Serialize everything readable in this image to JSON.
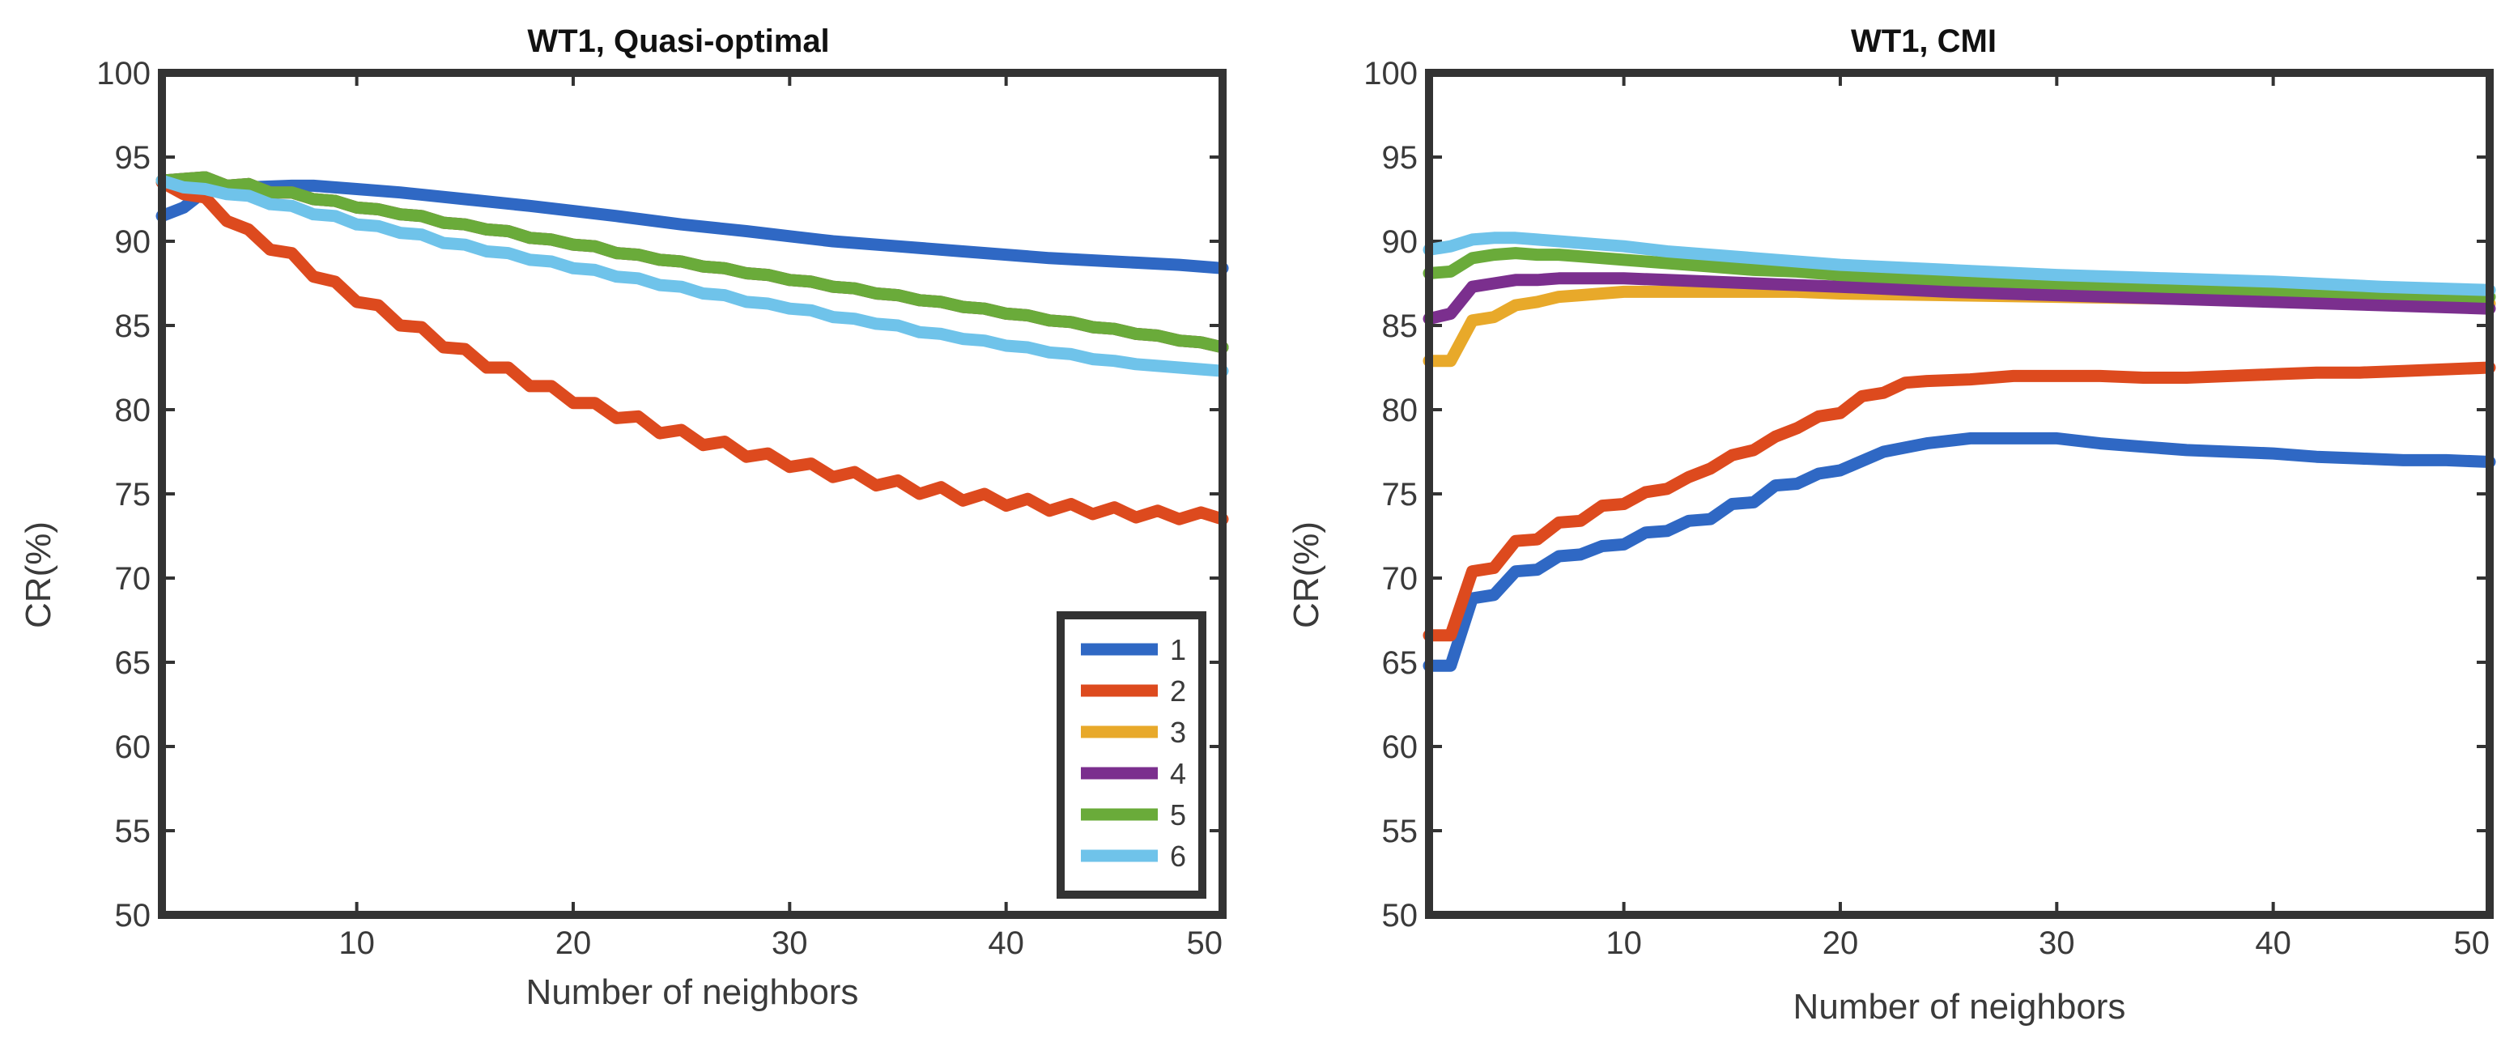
{
  "chart_data": [
    {
      "type": "line",
      "title": "WT1, Quasi-optimal",
      "xlabel": "Number of neighbors",
      "ylabel": "CR(%)",
      "xlim": [
        1,
        50
      ],
      "ylim": [
        50,
        100
      ],
      "xticks": [
        10,
        20,
        30,
        40,
        50
      ],
      "yticks": [
        50,
        55,
        60,
        65,
        70,
        75,
        80,
        85,
        90,
        95,
        100
      ],
      "legend": {
        "position": "bottom-right",
        "entries": [
          "1",
          "2",
          "3",
          "4",
          "5",
          "6"
        ]
      },
      "series": [
        {
          "name": "1",
          "color": "#2f68c4",
          "x": [
            1,
            2,
            3,
            5,
            7,
            8,
            10,
            12,
            15,
            18,
            20,
            22,
            25,
            28,
            30,
            32,
            35,
            38,
            40,
            42,
            45,
            48,
            50
          ],
          "y": [
            91.5,
            92,
            93,
            93.2,
            93.3,
            93.3,
            93.1,
            92.9,
            92.5,
            92.1,
            91.8,
            91.5,
            91,
            90.6,
            90.3,
            90,
            89.7,
            89.4,
            89.2,
            89,
            88.8,
            88.6,
            88.4
          ]
        },
        {
          "name": "2",
          "color": "#dd4a1e",
          "x": [
            1,
            2,
            3,
            4,
            5,
            6,
            7,
            8,
            9,
            10,
            11,
            12,
            13,
            14,
            15,
            16,
            17,
            18,
            19,
            20,
            21,
            22,
            23,
            24,
            25,
            26,
            27,
            28,
            29,
            30,
            31,
            32,
            33,
            34,
            35,
            36,
            37,
            38,
            39,
            40,
            41,
            42,
            43,
            44,
            45,
            46,
            47,
            48,
            49,
            50
          ],
          "y": [
            93.5,
            92.8,
            92.6,
            91.2,
            90.7,
            89.5,
            89.3,
            87.9,
            87.6,
            86.4,
            86.2,
            85.0,
            84.9,
            83.7,
            83.6,
            82.5,
            82.5,
            81.4,
            81.4,
            80.4,
            80.4,
            79.5,
            79.6,
            78.6,
            78.8,
            77.9,
            78.1,
            77.2,
            77.4,
            76.6,
            76.8,
            76.0,
            76.3,
            75.5,
            75.8,
            75.0,
            75.4,
            74.6,
            75.0,
            74.3,
            74.7,
            74.0,
            74.4,
            73.8,
            74.2,
            73.6,
            74.0,
            73.5,
            73.9,
            73.5
          ]
        },
        {
          "name": "3",
          "color": "#e8a92a",
          "x": [
            1,
            2,
            3,
            4,
            5,
            6,
            7,
            8,
            9,
            10,
            11,
            12,
            13,
            14,
            15,
            16,
            17,
            18,
            19,
            20,
            21,
            22,
            23,
            24,
            25,
            26,
            27,
            28,
            29,
            30,
            31,
            32,
            33,
            34,
            35,
            36,
            37,
            38,
            39,
            40,
            41,
            42,
            43,
            44,
            45,
            46,
            47,
            48,
            49,
            50
          ],
          "y": [
            93.6,
            93.7,
            93.8,
            93.3,
            93.4,
            92.9,
            92.9,
            92.5,
            92.4,
            92.0,
            91.9,
            91.6,
            91.5,
            91.1,
            91.0,
            90.7,
            90.6,
            90.2,
            90.1,
            89.8,
            89.7,
            89.3,
            89.2,
            88.9,
            88.8,
            88.5,
            88.4,
            88.1,
            88.0,
            87.7,
            87.6,
            87.3,
            87.2,
            86.9,
            86.8,
            86.5,
            86.4,
            86.1,
            86.0,
            85.7,
            85.6,
            85.3,
            85.2,
            84.9,
            84.8,
            84.5,
            84.4,
            84.1,
            84.0,
            83.7
          ]
        },
        {
          "name": "4",
          "color": "#7b2f8e",
          "x": [
            1,
            2,
            3,
            4,
            5,
            6,
            7,
            8,
            9,
            10,
            11,
            12,
            13,
            14,
            15,
            16,
            17,
            18,
            19,
            20,
            21,
            22,
            23,
            24,
            25,
            26,
            27,
            28,
            29,
            30,
            31,
            32,
            33,
            34,
            35,
            36,
            37,
            38,
            39,
            40,
            41,
            42,
            43,
            44,
            45,
            46,
            47,
            48,
            49,
            50
          ],
          "y": [
            93.6,
            93.7,
            93.8,
            93.3,
            93.4,
            92.9,
            92.9,
            92.5,
            92.4,
            92.0,
            91.9,
            91.6,
            91.5,
            91.1,
            91.0,
            90.7,
            90.6,
            90.2,
            90.1,
            89.8,
            89.7,
            89.3,
            89.2,
            88.9,
            88.8,
            88.5,
            88.4,
            88.1,
            88.0,
            87.7,
            87.6,
            87.3,
            87.2,
            86.9,
            86.8,
            86.5,
            86.4,
            86.1,
            86.0,
            85.7,
            85.6,
            85.3,
            85.2,
            84.9,
            84.8,
            84.5,
            84.4,
            84.1,
            84.0,
            83.7
          ]
        },
        {
          "name": "5",
          "color": "#6aab3a",
          "x": [
            1,
            2,
            3,
            4,
            5,
            6,
            7,
            8,
            9,
            10,
            11,
            12,
            13,
            14,
            15,
            16,
            17,
            18,
            19,
            20,
            21,
            22,
            23,
            24,
            25,
            26,
            27,
            28,
            29,
            30,
            31,
            32,
            33,
            34,
            35,
            36,
            37,
            38,
            39,
            40,
            41,
            42,
            43,
            44,
            45,
            46,
            47,
            48,
            49,
            50
          ],
          "y": [
            93.6,
            93.7,
            93.8,
            93.3,
            93.4,
            92.9,
            92.9,
            92.5,
            92.4,
            92.0,
            91.9,
            91.6,
            91.5,
            91.1,
            91.0,
            90.7,
            90.6,
            90.2,
            90.1,
            89.8,
            89.7,
            89.3,
            89.2,
            88.9,
            88.8,
            88.5,
            88.4,
            88.1,
            88.0,
            87.7,
            87.6,
            87.3,
            87.2,
            86.9,
            86.8,
            86.5,
            86.4,
            86.1,
            86.0,
            85.7,
            85.6,
            85.3,
            85.2,
            84.9,
            84.8,
            84.5,
            84.4,
            84.1,
            84.0,
            83.7
          ]
        },
        {
          "name": "6",
          "color": "#6fc3ea",
          "x": [
            1,
            2,
            3,
            4,
            5,
            6,
            7,
            8,
            9,
            10,
            11,
            12,
            13,
            14,
            15,
            16,
            17,
            18,
            19,
            20,
            21,
            22,
            23,
            24,
            25,
            26,
            27,
            28,
            29,
            30,
            31,
            32,
            33,
            34,
            35,
            36,
            37,
            38,
            39,
            40,
            41,
            42,
            43,
            44,
            45,
            46,
            47,
            48,
            49,
            50
          ],
          "y": [
            93.6,
            93.2,
            93.1,
            92.8,
            92.7,
            92.2,
            92.1,
            91.6,
            91.5,
            91.0,
            90.9,
            90.5,
            90.4,
            89.9,
            89.8,
            89.4,
            89.3,
            88.9,
            88.8,
            88.4,
            88.3,
            87.9,
            87.8,
            87.4,
            87.3,
            86.9,
            86.8,
            86.4,
            86.3,
            86.0,
            85.9,
            85.5,
            85.4,
            85.1,
            85.0,
            84.6,
            84.5,
            84.2,
            84.1,
            83.8,
            83.7,
            83.4,
            83.3,
            83.0,
            82.9,
            82.7,
            82.6,
            82.5,
            82.4,
            82.3
          ]
        }
      ]
    },
    {
      "type": "line",
      "title": "WT1, CMI",
      "xlabel": "Number  of neighbors",
      "ylabel": "CR(%)",
      "xlim": [
        1,
        50
      ],
      "ylim": [
        50,
        100
      ],
      "xticks": [
        10,
        20,
        30,
        40,
        50
      ],
      "yticks": [
        50,
        55,
        60,
        65,
        70,
        75,
        80,
        85,
        90,
        95,
        100
      ],
      "series": [
        {
          "name": "1",
          "color": "#2f68c4",
          "x": [
            1,
            2,
            3,
            4,
            5,
            6,
            7,
            8,
            9,
            10,
            11,
            12,
            13,
            14,
            15,
            16,
            17,
            18,
            19,
            20,
            22,
            24,
            26,
            28,
            30,
            32,
            34,
            36,
            38,
            40,
            42,
            44,
            46,
            48,
            50
          ],
          "y": [
            64.8,
            64.8,
            68.8,
            69.0,
            70.4,
            70.5,
            71.3,
            71.4,
            71.9,
            72.0,
            72.7,
            72.8,
            73.4,
            73.5,
            74.4,
            74.5,
            75.5,
            75.6,
            76.2,
            76.4,
            77.5,
            78.0,
            78.3,
            78.3,
            78.3,
            78.0,
            77.8,
            77.6,
            77.5,
            77.4,
            77.2,
            77.1,
            77.0,
            77.0,
            76.9
          ]
        },
        {
          "name": "2",
          "color": "#dd4a1e",
          "x": [
            1,
            2,
            3,
            4,
            5,
            6,
            7,
            8,
            9,
            10,
            11,
            12,
            13,
            14,
            15,
            16,
            17,
            18,
            19,
            20,
            21,
            22,
            23,
            24,
            26,
            28,
            30,
            32,
            34,
            36,
            38,
            40,
            42,
            44,
            46,
            48,
            50
          ],
          "y": [
            66.6,
            66.6,
            70.4,
            70.6,
            72.2,
            72.3,
            73.3,
            73.4,
            74.3,
            74.4,
            75.1,
            75.3,
            76.0,
            76.5,
            77.3,
            77.6,
            78.4,
            78.9,
            79.6,
            79.8,
            80.8,
            81.0,
            81.6,
            81.7,
            81.8,
            82.0,
            82.0,
            82.0,
            81.9,
            81.9,
            82.0,
            82.1,
            82.2,
            82.2,
            82.3,
            82.4,
            82.5
          ]
        },
        {
          "name": "3",
          "color": "#e8a92a",
          "x": [
            1,
            2,
            3,
            4,
            5,
            6,
            7,
            8,
            9,
            10,
            12,
            14,
            16,
            18,
            20,
            25,
            30,
            35,
            40,
            45,
            50
          ],
          "y": [
            82.9,
            82.9,
            85.3,
            85.5,
            86.2,
            86.4,
            86.7,
            86.8,
            86.9,
            87.0,
            87.0,
            87.0,
            87.0,
            87.0,
            86.9,
            86.8,
            86.7,
            86.6,
            86.5,
            86.4,
            86.3
          ]
        },
        {
          "name": "4",
          "color": "#7b2f8e",
          "x": [
            1,
            2,
            3,
            4,
            5,
            6,
            7,
            8,
            9,
            10,
            12,
            14,
            16,
            18,
            20,
            25,
            30,
            35,
            40,
            45,
            50
          ],
          "y": [
            85.4,
            85.7,
            87.3,
            87.5,
            87.7,
            87.7,
            87.8,
            87.8,
            87.8,
            87.8,
            87.7,
            87.6,
            87.5,
            87.4,
            87.3,
            87.0,
            86.8,
            86.6,
            86.4,
            86.2,
            86.0
          ]
        },
        {
          "name": "5",
          "color": "#6aab3a",
          "x": [
            1,
            2,
            3,
            4,
            5,
            6,
            7,
            8,
            9,
            10,
            12,
            14,
            16,
            18,
            20,
            25,
            30,
            35,
            40,
            45,
            50
          ],
          "y": [
            88.1,
            88.2,
            89.0,
            89.2,
            89.3,
            89.2,
            89.2,
            89.1,
            89.0,
            88.9,
            88.7,
            88.5,
            88.3,
            88.2,
            88.0,
            87.7,
            87.5,
            87.3,
            87.1,
            86.9,
            86.7
          ]
        },
        {
          "name": "6",
          "color": "#6fc3ea",
          "x": [
            1,
            2,
            3,
            4,
            5,
            6,
            7,
            8,
            9,
            10,
            12,
            14,
            16,
            18,
            20,
            25,
            30,
            35,
            40,
            45,
            50
          ],
          "y": [
            89.5,
            89.7,
            90.1,
            90.2,
            90.2,
            90.1,
            90.0,
            89.9,
            89.8,
            89.7,
            89.4,
            89.2,
            89.0,
            88.8,
            88.6,
            88.3,
            88.0,
            87.8,
            87.6,
            87.3,
            87.1
          ]
        }
      ]
    }
  ]
}
